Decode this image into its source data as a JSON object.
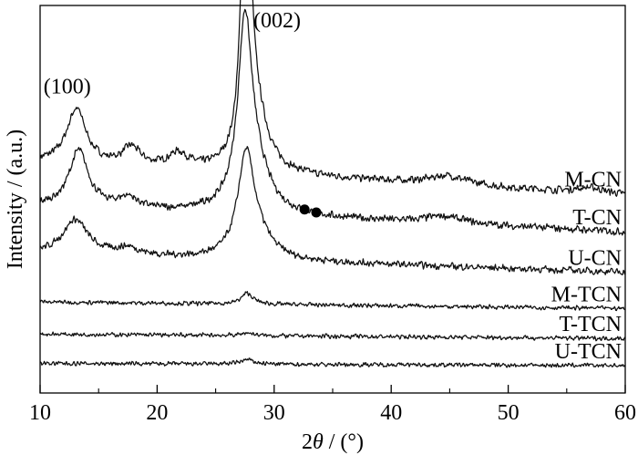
{
  "chart_data": {
    "type": "line",
    "title": "",
    "xlabel_parts": [
      "2",
      "θ",
      " / (°)"
    ],
    "ylabel": "Intensity / (a.u.)",
    "xlim": [
      10,
      60
    ],
    "xticks": [
      10,
      20,
      30,
      40,
      50,
      60
    ],
    "y_axis_ticks": false,
    "grid": false,
    "legend": "none",
    "series_labels_position": "right, beside each trace",
    "peaks": {
      "p100": {
        "label": "(100)",
        "two_theta": 13.1
      },
      "p002": {
        "label": "(002)",
        "two_theta": 27.6
      }
    },
    "markers": [
      {
        "symbol": "filled-circle",
        "two_theta": 32.6,
        "series": "T-CN"
      },
      {
        "symbol": "filled-circle",
        "two_theta": 33.6,
        "series": "T-CN"
      }
    ],
    "series": [
      {
        "name": "M-CN",
        "baseline": [
          [
            10,
            0.595
          ],
          [
            60,
            0.505
          ]
        ],
        "noise": 0.012,
        "peaks": [
          [
            13.1,
            0.15,
            1.0
          ],
          [
            17.8,
            0.05,
            0.9
          ],
          [
            21.8,
            0.04,
            1.0
          ],
          [
            27.6,
            1.0,
            0.4
          ],
          [
            28.4,
            0.15,
            1.2
          ],
          [
            44.8,
            0.025,
            2.0
          ],
          [
            57.0,
            0.015,
            1.5
          ]
        ]
      },
      {
        "name": "T-CN",
        "baseline": [
          [
            10,
            0.475
          ],
          [
            60,
            0.405
          ]
        ],
        "noise": 0.012,
        "peaks": [
          [
            13.3,
            0.155,
            1.0
          ],
          [
            17.5,
            0.03,
            1.0
          ],
          [
            27.5,
            0.47,
            0.7
          ],
          [
            28.3,
            0.12,
            1.5
          ],
          [
            44.5,
            0.02,
            2.0
          ]
        ]
      },
      {
        "name": "U-CN",
        "baseline": [
          [
            10,
            0.345
          ],
          [
            60,
            0.295
          ]
        ],
        "noise": 0.011,
        "peaks": [
          [
            13.0,
            0.095,
            1.3
          ],
          [
            17.5,
            0.02,
            1.2
          ],
          [
            27.6,
            0.27,
            0.85
          ],
          [
            28.6,
            0.05,
            1.5
          ]
        ]
      },
      {
        "name": "M-TCN",
        "baseline": [
          [
            10,
            0.214
          ],
          [
            60,
            0.196
          ]
        ],
        "noise": 0.007,
        "peaks": [
          [
            27.7,
            0.03,
            0.6
          ]
        ]
      },
      {
        "name": "T-TCN",
        "baseline": [
          [
            10,
            0.126
          ],
          [
            60,
            0.114
          ]
        ],
        "noise": 0.007,
        "peaks": [
          [
            27.7,
            0.008,
            0.6
          ]
        ]
      },
      {
        "name": "U-TCN",
        "baseline": [
          [
            10,
            0.046
          ],
          [
            60,
            0.04
          ]
        ],
        "noise": 0.007,
        "peaks": [
          [
            27.7,
            0.012,
            0.7
          ]
        ]
      }
    ]
  }
}
